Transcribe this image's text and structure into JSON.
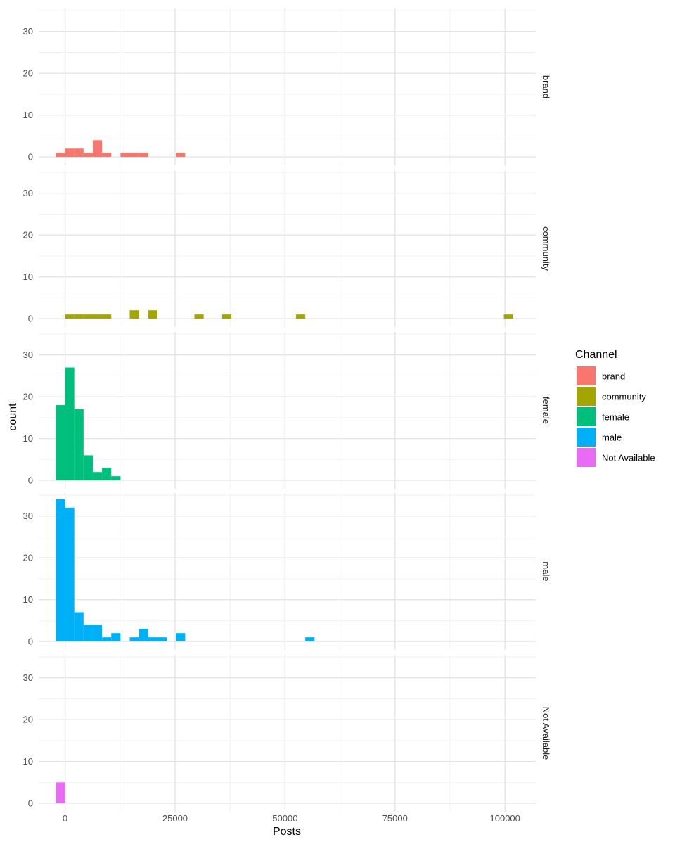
{
  "chart_data": {
    "type": "histogram",
    "xlabel": "Posts",
    "ylabel": "count",
    "xlim": [
      -6000,
      107000
    ],
    "ylim": [
      -2,
      35.5
    ],
    "x_ticks": [
      0,
      25000,
      50000,
      75000,
      100000
    ],
    "x_tick_labels": [
      "0",
      "25000",
      "50000",
      "75000",
      "100000"
    ],
    "y_ticks": [
      0,
      10,
      20,
      30
    ],
    "y_tick_labels": [
      "0",
      "10",
      "20",
      "30"
    ],
    "bin_width": 2100,
    "grid": true,
    "legend": {
      "title": "Channel",
      "placement": "right"
    },
    "facets": [
      {
        "name": "brand",
        "color": "#F8766D",
        "bins": [
          {
            "x": -1050,
            "count": 1
          },
          {
            "x": 1050,
            "count": 2
          },
          {
            "x": 3150,
            "count": 2
          },
          {
            "x": 5250,
            "count": 1
          },
          {
            "x": 7350,
            "count": 4
          },
          {
            "x": 9450,
            "count": 1
          },
          {
            "x": 13650,
            "count": 1
          },
          {
            "x": 15750,
            "count": 1
          },
          {
            "x": 17850,
            "count": 1
          },
          {
            "x": 26250,
            "count": 1
          }
        ]
      },
      {
        "name": "community",
        "color": "#A3A500",
        "bins": [
          {
            "x": 1050,
            "count": 1
          },
          {
            "x": 3150,
            "count": 1
          },
          {
            "x": 5250,
            "count": 1
          },
          {
            "x": 7350,
            "count": 1
          },
          {
            "x": 9450,
            "count": 1
          },
          {
            "x": 15750,
            "count": 2
          },
          {
            "x": 19950,
            "count": 2
          },
          {
            "x": 30450,
            "count": 1
          },
          {
            "x": 36750,
            "count": 1
          },
          {
            "x": 53550,
            "count": 1
          },
          {
            "x": 100800,
            "count": 1
          }
        ]
      },
      {
        "name": "female",
        "color": "#00BF7D",
        "bins": [
          {
            "x": -1050,
            "count": 18
          },
          {
            "x": 1050,
            "count": 27
          },
          {
            "x": 3150,
            "count": 17
          },
          {
            "x": 5250,
            "count": 6
          },
          {
            "x": 7350,
            "count": 2
          },
          {
            "x": 9450,
            "count": 3
          },
          {
            "x": 11550,
            "count": 1
          }
        ]
      },
      {
        "name": "male",
        "color": "#00B0F6",
        "bins": [
          {
            "x": -1050,
            "count": 34
          },
          {
            "x": 1050,
            "count": 32
          },
          {
            "x": 3150,
            "count": 7
          },
          {
            "x": 5250,
            "count": 4
          },
          {
            "x": 7350,
            "count": 4
          },
          {
            "x": 9450,
            "count": 1
          },
          {
            "x": 11550,
            "count": 2
          },
          {
            "x": 15750,
            "count": 1
          },
          {
            "x": 17850,
            "count": 3
          },
          {
            "x": 19950,
            "count": 1
          },
          {
            "x": 22050,
            "count": 1
          },
          {
            "x": 26250,
            "count": 2
          },
          {
            "x": 55650,
            "count": 1
          }
        ]
      },
      {
        "name": "Not Available",
        "color": "#E76BF3",
        "bins": [
          {
            "x": -1050,
            "count": 5
          }
        ]
      }
    ]
  }
}
